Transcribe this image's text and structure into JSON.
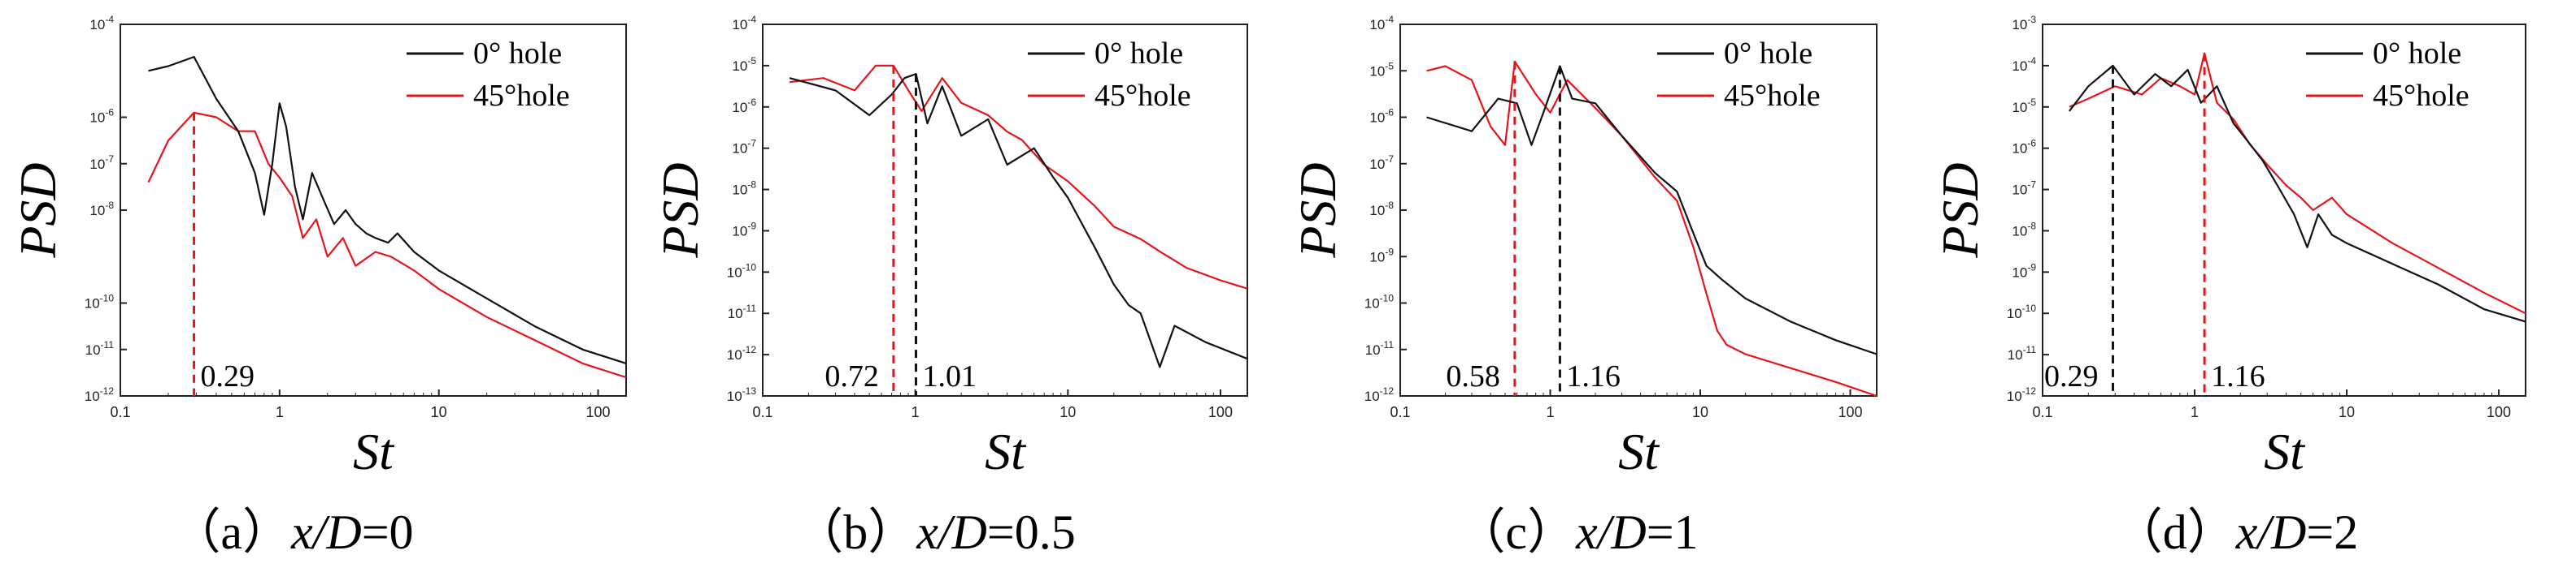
{
  "colors": {
    "zero_deg": "#111111",
    "forty_five_deg": "#e8141b",
    "axis": "#222222"
  },
  "chart_data": [
    {
      "type": "line",
      "panel": "a",
      "caption_prefix": "（a）",
      "caption_var": "x/D",
      "caption_value": "=0",
      "xlabel": "St",
      "ylabel": "PSD",
      "xscale": "log",
      "yscale": "log",
      "xlim": [
        0.1,
        150
      ],
      "ylim": [
        1e-12,
        0.0001
      ],
      "x_ticks": [
        {
          "value": 0.1,
          "label": "0.1"
        },
        {
          "value": 1,
          "label": "1"
        },
        {
          "value": 10,
          "label": "10"
        },
        {
          "value": 100,
          "label": "100"
        }
      ],
      "y_ticks": [
        {
          "exp": -4,
          "base": "10",
          "sup": "-4"
        },
        {
          "exp": -6,
          "base": "10",
          "sup": "-6"
        },
        {
          "exp": -7,
          "base": "10",
          "sup": "-7"
        },
        {
          "exp": -8,
          "base": "10",
          "sup": "-8"
        },
        {
          "exp": -10,
          "base": "10",
          "sup": "-10"
        },
        {
          "exp": -11,
          "base": "10",
          "sup": "-11"
        },
        {
          "exp": -12,
          "base": "10",
          "sup": "-12"
        }
      ],
      "series": [
        {
          "name": "0° hole",
          "color_key": "zero_deg",
          "points": [
            [
              0.15,
              -5.0
            ],
            [
              0.2,
              -4.9
            ],
            [
              0.29,
              -4.7
            ],
            [
              0.4,
              -5.6
            ],
            [
              0.55,
              -6.3
            ],
            [
              0.7,
              -7.2
            ],
            [
              0.8,
              -8.1
            ],
            [
              0.9,
              -7.0
            ],
            [
              1.0,
              -5.7
            ],
            [
              1.1,
              -6.2
            ],
            [
              1.25,
              -7.5
            ],
            [
              1.4,
              -8.2
            ],
            [
              1.6,
              -7.2
            ],
            [
              1.9,
              -7.8
            ],
            [
              2.2,
              -8.3
            ],
            [
              2.6,
              -8.0
            ],
            [
              3.0,
              -8.3
            ],
            [
              3.5,
              -8.5
            ],
            [
              4.0,
              -8.6
            ],
            [
              4.8,
              -8.7
            ],
            [
              5.5,
              -8.5
            ],
            [
              7,
              -8.9
            ],
            [
              10,
              -9.3
            ],
            [
              20,
              -9.9
            ],
            [
              40,
              -10.5
            ],
            [
              80,
              -11.0
            ],
            [
              150,
              -11.3
            ]
          ]
        },
        {
          "name": "45°hole",
          "color_key": "forty_five_deg",
          "points": [
            [
              0.15,
              -7.4
            ],
            [
              0.2,
              -6.5
            ],
            [
              0.29,
              -5.9
            ],
            [
              0.4,
              -6.0
            ],
            [
              0.55,
              -6.3
            ],
            [
              0.7,
              -6.3
            ],
            [
              0.85,
              -7.0
            ],
            [
              1.0,
              -7.3
            ],
            [
              1.2,
              -7.7
            ],
            [
              1.4,
              -8.6
            ],
            [
              1.7,
              -8.2
            ],
            [
              2.0,
              -9.0
            ],
            [
              2.5,
              -8.6
            ],
            [
              3.0,
              -9.2
            ],
            [
              4.0,
              -8.9
            ],
            [
              5.0,
              -9.0
            ],
            [
              7,
              -9.3
            ],
            [
              10,
              -9.7
            ],
            [
              20,
              -10.3
            ],
            [
              40,
              -10.8
            ],
            [
              80,
              -11.3
            ],
            [
              150,
              -11.6
            ]
          ]
        }
      ],
      "markers": [
        {
          "x": 0.29,
          "color_key": "forty_five_deg",
          "label": "0.29"
        }
      ],
      "legend": [
        "0° hole",
        "45°hole"
      ]
    },
    {
      "type": "line",
      "panel": "b",
      "caption_prefix": "（b）",
      "caption_var": "x/D",
      "caption_value": "=0.5",
      "xlabel": "St",
      "ylabel": "PSD",
      "xscale": "log",
      "yscale": "log",
      "xlim": [
        0.1,
        150
      ],
      "ylim": [
        1e-13,
        0.0001
      ],
      "x_ticks": [
        {
          "value": 0.1,
          "label": "0.1"
        },
        {
          "value": 1,
          "label": "1"
        },
        {
          "value": 10,
          "label": "10"
        },
        {
          "value": 100,
          "label": "100"
        }
      ],
      "y_ticks": [
        {
          "exp": -4,
          "base": "10",
          "sup": "-4"
        },
        {
          "exp": -5,
          "base": "10",
          "sup": "-5"
        },
        {
          "exp": -6,
          "base": "10",
          "sup": "-6"
        },
        {
          "exp": -7,
          "base": "10",
          "sup": "-7"
        },
        {
          "exp": -8,
          "base": "10",
          "sup": "-8"
        },
        {
          "exp": -9,
          "base": "10",
          "sup": "-9"
        },
        {
          "exp": -10,
          "base": "10",
          "sup": "-10"
        },
        {
          "exp": -11,
          "base": "10",
          "sup": "-11"
        },
        {
          "exp": -12,
          "base": "10",
          "sup": "-12"
        },
        {
          "exp": -13,
          "base": "10",
          "sup": "-13"
        }
      ],
      "series": [
        {
          "name": "0° hole",
          "color_key": "zero_deg",
          "points": [
            [
              0.15,
              -5.3
            ],
            [
              0.3,
              -5.6
            ],
            [
              0.5,
              -6.2
            ],
            [
              0.7,
              -5.7
            ],
            [
              0.85,
              -5.3
            ],
            [
              1.01,
              -5.2
            ],
            [
              1.2,
              -6.4
            ],
            [
              1.5,
              -5.5
            ],
            [
              2,
              -6.7
            ],
            [
              3,
              -6.3
            ],
            [
              4,
              -7.4
            ],
            [
              6,
              -7.0
            ],
            [
              8,
              -7.7
            ],
            [
              10,
              -8.2
            ],
            [
              15,
              -9.4
            ],
            [
              20,
              -10.3
            ],
            [
              25,
              -10.8
            ],
            [
              30,
              -11.0
            ],
            [
              40,
              -12.3
            ],
            [
              50,
              -11.3
            ],
            [
              80,
              -11.7
            ],
            [
              150,
              -12.1
            ]
          ]
        },
        {
          "name": "45°hole",
          "color_key": "forty_five_deg",
          "points": [
            [
              0.15,
              -5.4
            ],
            [
              0.25,
              -5.3
            ],
            [
              0.4,
              -5.6
            ],
            [
              0.55,
              -5.0
            ],
            [
              0.72,
              -5.0
            ],
            [
              0.9,
              -5.6
            ],
            [
              1.1,
              -6.1
            ],
            [
              1.5,
              -5.3
            ],
            [
              2,
              -5.9
            ],
            [
              3,
              -6.2
            ],
            [
              4,
              -6.6
            ],
            [
              5,
              -6.8
            ],
            [
              7,
              -7.4
            ],
            [
              10,
              -7.8
            ],
            [
              15,
              -8.4
            ],
            [
              20,
              -8.9
            ],
            [
              30,
              -9.2
            ],
            [
              40,
              -9.5
            ],
            [
              60,
              -9.9
            ],
            [
              100,
              -10.2
            ],
            [
              150,
              -10.4
            ]
          ]
        }
      ],
      "markers": [
        {
          "x": 0.72,
          "color_key": "forty_five_deg",
          "label": "0.72"
        },
        {
          "x": 1.01,
          "color_key": "zero_deg",
          "label": "1.01"
        }
      ],
      "legend": [
        "0° hole",
        "45°hole"
      ]
    },
    {
      "type": "line",
      "panel": "c",
      "caption_prefix": "（c）",
      "caption_var": "x/D",
      "caption_value": "=1",
      "xlabel": "St",
      "ylabel": "PSD",
      "xscale": "log",
      "yscale": "log",
      "xlim": [
        0.1,
        150
      ],
      "ylim": [
        1e-12,
        0.0001
      ],
      "x_ticks": [
        {
          "value": 0.1,
          "label": "0.1"
        },
        {
          "value": 1,
          "label": "1"
        },
        {
          "value": 10,
          "label": "10"
        },
        {
          "value": 100,
          "label": "100"
        }
      ],
      "y_ticks": [
        {
          "exp": -4,
          "base": "10",
          "sup": "-4"
        },
        {
          "exp": -5,
          "base": "10",
          "sup": "-5"
        },
        {
          "exp": -6,
          "base": "10",
          "sup": "-6"
        },
        {
          "exp": -7,
          "base": "10",
          "sup": "-7"
        },
        {
          "exp": -8,
          "base": "10",
          "sup": "-8"
        },
        {
          "exp": -9,
          "base": "10",
          "sup": "-9"
        },
        {
          "exp": -10,
          "base": "10",
          "sup": "-10"
        },
        {
          "exp": -11,
          "base": "10",
          "sup": "-11"
        },
        {
          "exp": -12,
          "base": "10",
          "sup": "-12"
        }
      ],
      "series": [
        {
          "name": "0° hole",
          "color_key": "zero_deg",
          "points": [
            [
              0.15,
              -6.0
            ],
            [
              0.3,
              -6.3
            ],
            [
              0.45,
              -5.6
            ],
            [
              0.6,
              -5.7
            ],
            [
              0.75,
              -6.6
            ],
            [
              0.9,
              -5.9
            ],
            [
              1.16,
              -4.9
            ],
            [
              1.4,
              -5.6
            ],
            [
              2,
              -5.7
            ],
            [
              3,
              -6.4
            ],
            [
              5,
              -7.2
            ],
            [
              7,
              -7.6
            ],
            [
              9,
              -8.5
            ],
            [
              11,
              -9.2
            ],
            [
              14,
              -9.5
            ],
            [
              20,
              -9.9
            ],
            [
              40,
              -10.4
            ],
            [
              80,
              -10.8
            ],
            [
              150,
              -11.1
            ]
          ]
        },
        {
          "name": "45°hole",
          "color_key": "forty_five_deg",
          "points": [
            [
              0.15,
              -5.0
            ],
            [
              0.2,
              -4.9
            ],
            [
              0.3,
              -5.2
            ],
            [
              0.4,
              -6.2
            ],
            [
              0.5,
              -6.6
            ],
            [
              0.58,
              -4.8
            ],
            [
              0.8,
              -5.5
            ],
            [
              1.0,
              -5.9
            ],
            [
              1.3,
              -5.2
            ],
            [
              2,
              -5.8
            ],
            [
              3,
              -6.4
            ],
            [
              5,
              -7.3
            ],
            [
              7,
              -7.8
            ],
            [
              9,
              -8.8
            ],
            [
              11,
              -9.8
            ],
            [
              13,
              -10.6
            ],
            [
              15,
              -10.9
            ],
            [
              20,
              -11.1
            ],
            [
              40,
              -11.4
            ],
            [
              80,
              -11.7
            ],
            [
              150,
              -12.0
            ]
          ]
        }
      ],
      "markers": [
        {
          "x": 0.58,
          "color_key": "forty_five_deg",
          "label": "0.58"
        },
        {
          "x": 1.16,
          "color_key": "zero_deg",
          "label": "1.16"
        }
      ],
      "legend": [
        "0° hole",
        "45°hole"
      ]
    },
    {
      "type": "line",
      "panel": "d",
      "caption_prefix": "（d）",
      "caption_var": "x/D",
      "caption_value": "=2",
      "xlabel": "St",
      "ylabel": "PSD",
      "xscale": "log",
      "yscale": "log",
      "xlim": [
        0.1,
        150
      ],
      "ylim": [
        1e-12,
        0.001
      ],
      "x_ticks": [
        {
          "value": 0.1,
          "label": "0.1"
        },
        {
          "value": 1,
          "label": "1"
        },
        {
          "value": 10,
          "label": "10"
        },
        {
          "value": 100,
          "label": "100"
        }
      ],
      "y_ticks": [
        {
          "exp": -3,
          "base": "10",
          "sup": "-3"
        },
        {
          "exp": -4,
          "base": "10",
          "sup": "-4"
        },
        {
          "exp": -5,
          "base": "10",
          "sup": "-5"
        },
        {
          "exp": -6,
          "base": "10",
          "sup": "-6"
        },
        {
          "exp": -7,
          "base": "10",
          "sup": "-7"
        },
        {
          "exp": -8,
          "base": "10",
          "sup": "-8"
        },
        {
          "exp": -9,
          "base": "10",
          "sup": "-9"
        },
        {
          "exp": -10,
          "base": "10",
          "sup": "-10"
        },
        {
          "exp": -11,
          "base": "10",
          "sup": "-11"
        },
        {
          "exp": -12,
          "base": "10",
          "sup": "-12"
        }
      ],
      "series": [
        {
          "name": "0° hole",
          "color_key": "zero_deg",
          "points": [
            [
              0.15,
              -5.1
            ],
            [
              0.2,
              -4.5
            ],
            [
              0.29,
              -4.0
            ],
            [
              0.4,
              -4.7
            ],
            [
              0.55,
              -4.2
            ],
            [
              0.7,
              -4.5
            ],
            [
              0.9,
              -4.1
            ],
            [
              1.1,
              -4.9
            ],
            [
              1.4,
              -4.5
            ],
            [
              1.8,
              -5.4
            ],
            [
              2.2,
              -5.8
            ],
            [
              2.8,
              -6.3
            ],
            [
              3.5,
              -6.9
            ],
            [
              4.5,
              -7.6
            ],
            [
              5.5,
              -8.4
            ],
            [
              6.5,
              -7.6
            ],
            [
              8,
              -8.1
            ],
            [
              10,
              -8.3
            ],
            [
              20,
              -8.8
            ],
            [
              40,
              -9.3
            ],
            [
              80,
              -9.9
            ],
            [
              150,
              -10.2
            ]
          ]
        },
        {
          "name": "45°hole",
          "color_key": "forty_five_deg",
          "points": [
            [
              0.15,
              -5.0
            ],
            [
              0.2,
              -4.8
            ],
            [
              0.3,
              -4.5
            ],
            [
              0.45,
              -4.7
            ],
            [
              0.6,
              -4.3
            ],
            [
              0.8,
              -4.5
            ],
            [
              1.0,
              -4.7
            ],
            [
              1.16,
              -3.7
            ],
            [
              1.4,
              -4.9
            ],
            [
              1.8,
              -5.3
            ],
            [
              2.3,
              -5.9
            ],
            [
              3,
              -6.4
            ],
            [
              4,
              -6.9
            ],
            [
              5,
              -7.2
            ],
            [
              6,
              -7.5
            ],
            [
              8,
              -7.2
            ],
            [
              10,
              -7.6
            ],
            [
              20,
              -8.3
            ],
            [
              40,
              -8.9
            ],
            [
              80,
              -9.5
            ],
            [
              150,
              -10.0
            ]
          ]
        }
      ],
      "markers": [
        {
          "x": 0.29,
          "color_key": "zero_deg",
          "label": "0.29"
        },
        {
          "x": 1.16,
          "color_key": "forty_five_deg",
          "label": "1.16"
        }
      ],
      "legend": [
        "0° hole",
        "45°hole"
      ]
    }
  ]
}
